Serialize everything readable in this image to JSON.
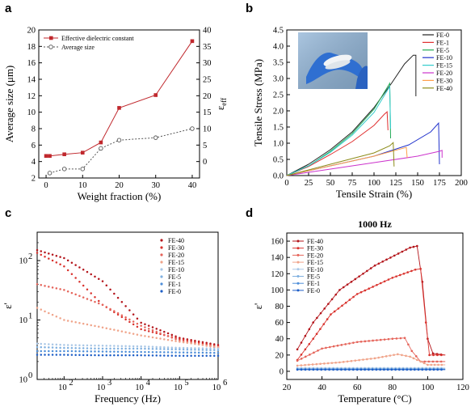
{
  "chart_data": [
    {
      "panel": "a",
      "type": "line",
      "xlabel": "Weight fraction (%)",
      "ylabel": "Average size (μm)",
      "y2label": "ε_eff",
      "xlim": [
        -2,
        42
      ],
      "ylim": [
        2,
        20
      ],
      "y2lim": [
        -5,
        40
      ],
      "xticks": [
        0,
        10,
        20,
        30,
        40
      ],
      "yticks": [
        2,
        4,
        6,
        8,
        10,
        12,
        14,
        16,
        18,
        20
      ],
      "y2ticks": [
        0,
        5,
        10,
        15,
        20,
        25,
        30,
        35,
        40
      ],
      "series": [
        {
          "name": "Effective dielectric constant",
          "axis": "right",
          "color": "#c0282d",
          "marker": "square",
          "x": [
            0,
            1,
            5,
            10,
            15,
            20,
            30,
            40
          ],
          "y": [
            1.7,
            1.7,
            2.2,
            2.7,
            5.8,
            16.3,
            20.2,
            36.6
          ]
        },
        {
          "name": "Average size",
          "axis": "left",
          "color": "#555555",
          "marker": "open-circle",
          "dotted": true,
          "x": [
            1,
            5,
            10,
            15,
            20,
            30,
            40
          ],
          "y": [
            2.6,
            3.1,
            3.1,
            5.6,
            6.6,
            6.9,
            8.0
          ]
        }
      ]
    },
    {
      "panel": "b",
      "type": "line",
      "xlabel": "Tensile Strain (%)",
      "ylabel": "Tensile Stress (MPa)",
      "xlim": [
        0,
        200
      ],
      "ylim": [
        0,
        4.5
      ],
      "xticks": [
        0,
        25,
        50,
        75,
        100,
        125,
        150,
        175,
        200
      ],
      "yticks": [
        0.0,
        0.5,
        1.0,
        1.5,
        2.0,
        2.5,
        3.0,
        3.5,
        4.0,
        4.5
      ],
      "series": [
        {
          "name": "FE-0",
          "color": "#222222",
          "x": [
            0,
            25,
            50,
            75,
            100,
            120,
            135,
            145,
            148,
            148
          ],
          "y": [
            0,
            0.35,
            0.8,
            1.35,
            2.1,
            2.85,
            3.45,
            3.72,
            3.72,
            2.45
          ]
        },
        {
          "name": "FE-1",
          "color": "#e03030",
          "x": [
            0,
            25,
            50,
            75,
            100,
            112,
            115,
            116
          ],
          "y": [
            0,
            0.28,
            0.65,
            1.05,
            1.55,
            1.9,
            1.97,
            1.4
          ]
        },
        {
          "name": "FE-5",
          "color": "#22aa55",
          "x": [
            0,
            25,
            50,
            75,
            100,
            118,
            119
          ],
          "y": [
            0,
            0.3,
            0.75,
            1.3,
            2.05,
            2.85,
            1.15
          ]
        },
        {
          "name": "FE-10",
          "color": "#2233cc",
          "x": [
            0,
            50,
            100,
            140,
            165,
            174,
            175
          ],
          "y": [
            0,
            0.3,
            0.6,
            0.95,
            1.35,
            1.62,
            0.35
          ]
        },
        {
          "name": "FE-15",
          "color": "#33cccc",
          "x": [
            0,
            25,
            50,
            75,
            100,
            118,
            119
          ],
          "y": [
            0,
            0.3,
            0.72,
            1.25,
            1.95,
            2.75,
            1.45
          ]
        },
        {
          "name": "FE-20",
          "color": "#cc33cc",
          "x": [
            0,
            50,
            100,
            150,
            175,
            178,
            178
          ],
          "y": [
            0,
            0.2,
            0.4,
            0.6,
            0.75,
            0.78,
            0.55
          ]
        },
        {
          "name": "FE-30",
          "color": "#ff9f4a",
          "x": [
            0,
            50,
            100,
            130,
            137,
            138
          ],
          "y": [
            0,
            0.3,
            0.6,
            0.82,
            0.87,
            0.55
          ]
        },
        {
          "name": "FE-40",
          "color": "#8c8c1a",
          "x": [
            0,
            50,
            100,
            118,
            122,
            123
          ],
          "y": [
            0,
            0.35,
            0.7,
            0.92,
            1.02,
            0.28
          ]
        }
      ]
    },
    {
      "panel": "c",
      "type": "scatter",
      "xlabel": "Frequency (Hz)",
      "ylabel": "ε'",
      "xscale": "log",
      "yscale": "log",
      "xlim": [
        20,
        1000000
      ],
      "ylim": [
        1,
        300
      ],
      "xticks": [
        100,
        1000,
        10000,
        100000,
        1000000
      ],
      "xticklabels": [
        "10",
        "10",
        "10",
        "10",
        "10"
      ],
      "xtickexps": [
        "2",
        "3",
        "4",
        "5",
        "6"
      ],
      "yticks": [
        1,
        10,
        100
      ],
      "yticklabels": [
        "10",
        "10",
        "10"
      ],
      "ytickexps": [
        "0",
        "1",
        "2"
      ],
      "series": [
        {
          "name": "FE-40",
          "color": "#b3141a",
          "points": [
            [
              20,
              150
            ],
            [
              100,
              110
            ],
            [
              1000,
              45
            ],
            [
              10000,
              9
            ],
            [
              100000,
              5
            ],
            [
              1000000,
              3.8
            ]
          ]
        },
        {
          "name": "FE-30",
          "color": "#d9332e",
          "points": [
            [
              20,
              135
            ],
            [
              100,
              80
            ],
            [
              1000,
              18
            ],
            [
              10000,
              7
            ],
            [
              100000,
              4.8
            ],
            [
              1000000,
              3.6
            ]
          ]
        },
        {
          "name": "FE-20",
          "color": "#e5645a",
          "points": [
            [
              20,
              40
            ],
            [
              100,
              32
            ],
            [
              1000,
              18
            ],
            [
              10000,
              8
            ],
            [
              100000,
              4.5
            ],
            [
              1000000,
              3.4
            ]
          ]
        },
        {
          "name": "FE-15",
          "color": "#f0a48a",
          "points": [
            [
              20,
              16
            ],
            [
              100,
              10
            ],
            [
              1000,
              7.5
            ],
            [
              10000,
              5.5
            ],
            [
              100000,
              4.3
            ],
            [
              1000000,
              3.5
            ]
          ]
        },
        {
          "name": "FE-10",
          "color": "#a9c7e6",
          "points": [
            [
              20,
              4
            ],
            [
              100,
              3.8
            ],
            [
              1000,
              3.7
            ],
            [
              10000,
              3.6
            ],
            [
              100000,
              3.4
            ],
            [
              1000000,
              3.3
            ]
          ]
        },
        {
          "name": "FE-5",
          "color": "#7fb0e0",
          "points": [
            [
              20,
              3.5
            ],
            [
              100,
              3.4
            ],
            [
              1000,
              3.3
            ],
            [
              10000,
              3.3
            ],
            [
              100000,
              3.2
            ],
            [
              1000000,
              3.1
            ]
          ]
        },
        {
          "name": "FE-1",
          "color": "#4f8fd9",
          "points": [
            [
              20,
              3.0
            ],
            [
              100,
              3.0
            ],
            [
              1000,
              2.95
            ],
            [
              10000,
              2.9
            ],
            [
              100000,
              2.85
            ],
            [
              1000000,
              2.8
            ]
          ]
        },
        {
          "name": "FE-0",
          "color": "#1f5fc7",
          "points": [
            [
              20,
              2.6
            ],
            [
              100,
              2.6
            ],
            [
              1000,
              2.55
            ],
            [
              10000,
              2.55
            ],
            [
              100000,
              2.5
            ],
            [
              1000000,
              2.5
            ]
          ]
        }
      ]
    },
    {
      "panel": "d",
      "type": "line",
      "title": "1000 Hz",
      "xlabel": "Temperature (°C)",
      "ylabel": "ε'",
      "xlim": [
        20,
        120
      ],
      "ylim": [
        -10,
        170
      ],
      "xticks": [
        20,
        40,
        60,
        80,
        100,
        120
      ],
      "yticks": [
        0,
        20,
        40,
        60,
        80,
        100,
        120,
        140,
        160
      ],
      "series": [
        {
          "name": "FE-40",
          "color": "#b3141a",
          "points": [
            [
              26,
              27
            ],
            [
              35,
              60
            ],
            [
              50,
              100
            ],
            [
              70,
              130
            ],
            [
              90,
              152
            ],
            [
              94,
              154
            ],
            [
              97,
              110
            ],
            [
              100,
              40
            ],
            [
              103,
              22
            ],
            [
              110,
              20
            ]
          ]
        },
        {
          "name": "FE-30",
          "color": "#d9332e",
          "points": [
            [
              26,
              14
            ],
            [
              35,
              40
            ],
            [
              45,
              70
            ],
            [
              60,
              95
            ],
            [
              80,
              115
            ],
            [
              93,
              125
            ],
            [
              96,
              126
            ],
            [
              99,
              60
            ],
            [
              101,
              20
            ],
            [
              110,
              20
            ]
          ]
        },
        {
          "name": "FE-20",
          "color": "#e5645a",
          "points": [
            [
              26,
              13
            ],
            [
              40,
              28
            ],
            [
              60,
              36
            ],
            [
              80,
              40
            ],
            [
              87,
              41
            ],
            [
              91,
              25
            ],
            [
              96,
              12
            ],
            [
              110,
              12
            ]
          ]
        },
        {
          "name": "FE-15",
          "color": "#f0a48a",
          "points": [
            [
              26,
              7
            ],
            [
              50,
              11
            ],
            [
              70,
              16
            ],
            [
              83,
              21
            ],
            [
              90,
              18
            ],
            [
              100,
              8
            ],
            [
              110,
              8
            ]
          ]
        },
        {
          "name": "FE-10",
          "color": "#a9c7e6",
          "points": [
            [
              26,
              4
            ],
            [
              60,
              4
            ],
            [
              110,
              4
            ]
          ]
        },
        {
          "name": "FE-5",
          "color": "#7fb0e0",
          "points": [
            [
              26,
              3
            ],
            [
              60,
              3
            ],
            [
              110,
              3
            ]
          ]
        },
        {
          "name": "FE-1",
          "color": "#4f8fd9",
          "points": [
            [
              26,
              2.5
            ],
            [
              60,
              2.5
            ],
            [
              110,
              2.5
            ]
          ]
        },
        {
          "name": "FE-0",
          "color": "#1f5fc7",
          "points": [
            [
              26,
              2
            ],
            [
              60,
              2
            ],
            [
              110,
              2
            ]
          ]
        }
      ]
    }
  ]
}
